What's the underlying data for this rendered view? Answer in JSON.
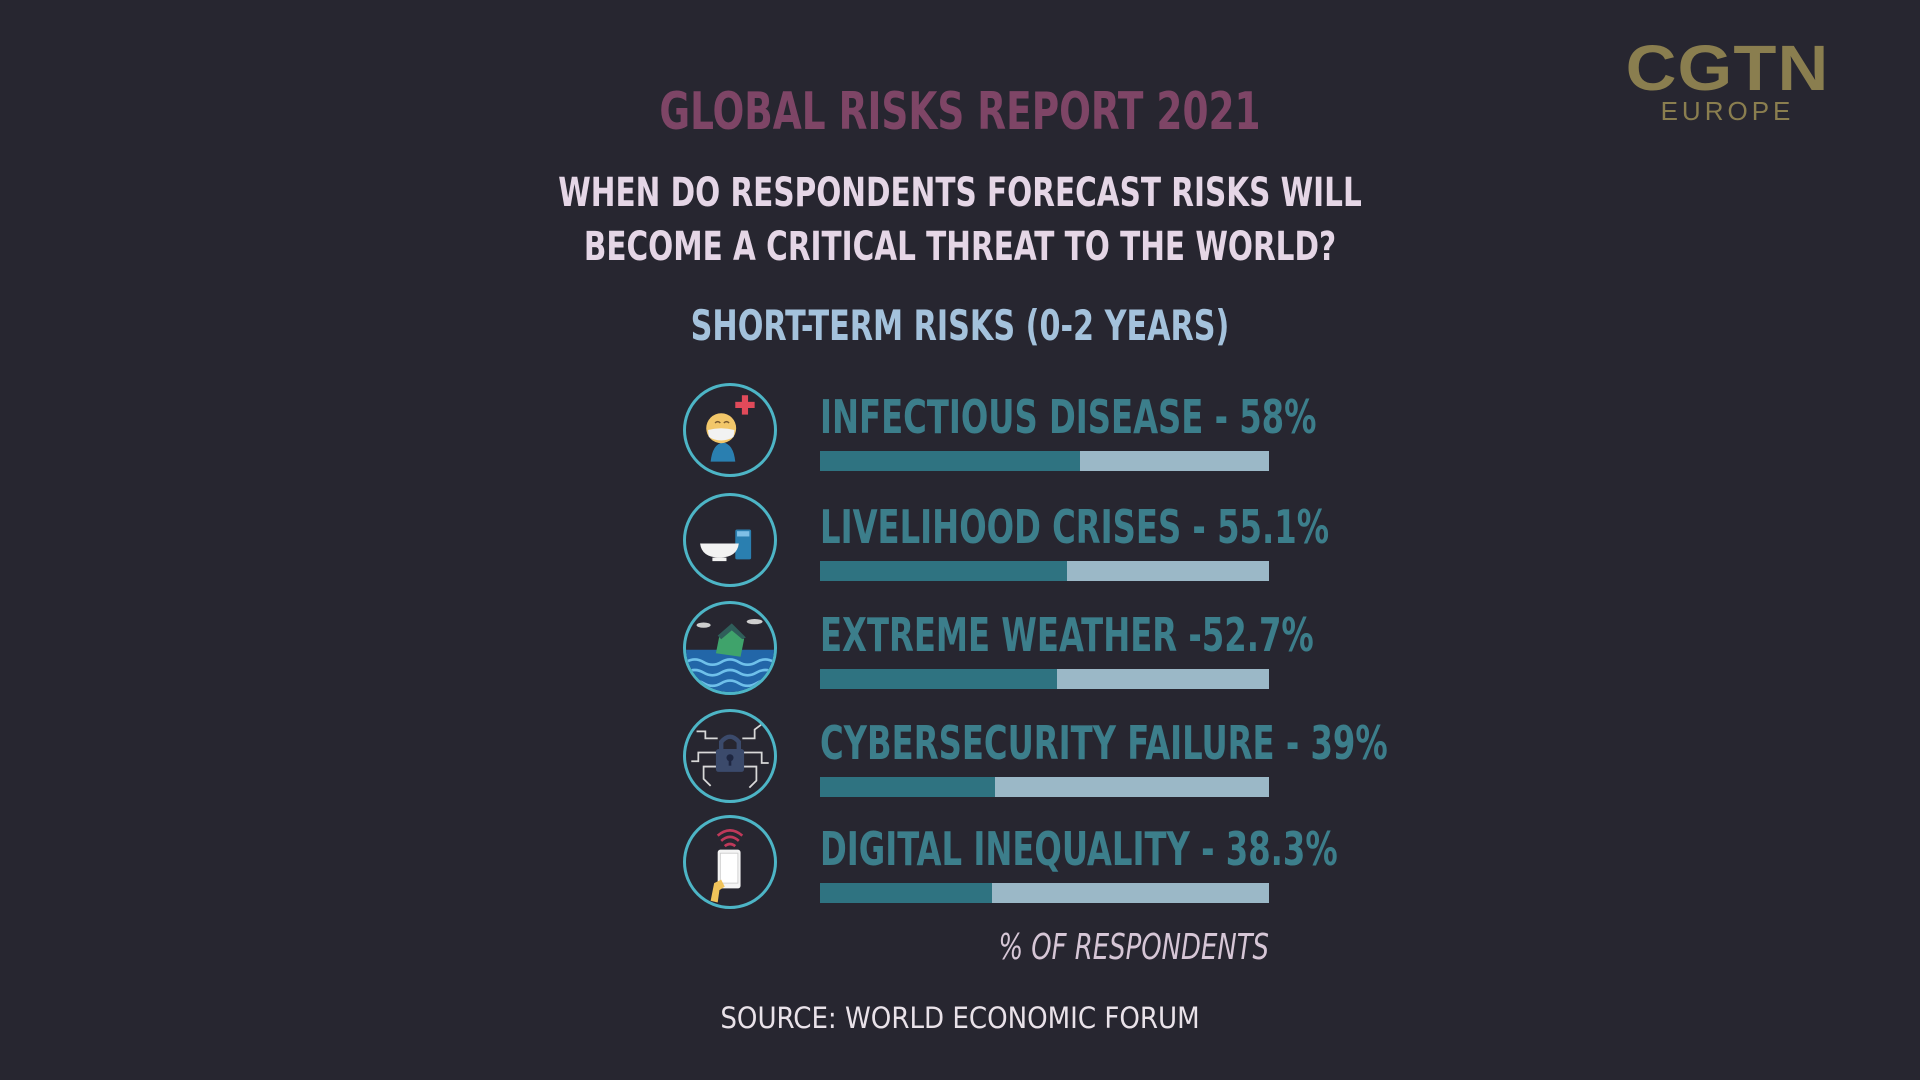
{
  "brand": {
    "main": "CGTN",
    "sub": "EUROPE"
  },
  "chart_data": {
    "type": "bar",
    "title": "GLOBAL RISKS REPORT 2021",
    "subtitle": [
      "WHEN DO RESPONDENTS FORECAST RISKS WILL",
      "BECOME A CRITICAL THREAT TO THE WORLD?"
    ],
    "section_title": "SHORT-TERM RISKS (0-2 YEARS)",
    "unit_label": "% OF RESPONDENTS",
    "source": "SOURCE: WORLD ECONOMIC FORUM",
    "xlim": [
      0,
      100
    ],
    "colors": {
      "fill": "#2f7381",
      "track": "#9bb8c7",
      "label": "#3c7e8b",
      "icon_ring": "#4db5c6"
    },
    "series": [
      {
        "values": [
          58,
          55.1,
          52.7,
          39,
          38.3
        ]
      }
    ],
    "categories": [
      "INFECTIOUS DISEASE",
      "LIVELIHOOD CRISES",
      "EXTREME WEATHER",
      "CYBERSECURITY FAILURE",
      "DIGITAL INEQUALITY"
    ],
    "bars": [
      {
        "label": "INFECTIOUS DISEASE - 58%",
        "value": 58,
        "icon": "masked-person-medical-cross-icon"
      },
      {
        "label": "LIVELIHOOD CRISES - 55.1%",
        "value": 55.1,
        "icon": "empty-bowl-and-cup-icon"
      },
      {
        "label": "EXTREME WEATHER -52.7%",
        "value": 52.7,
        "icon": "flooded-house-icon"
      },
      {
        "label": "CYBERSECURITY FAILURE - 39%",
        "value": 39,
        "icon": "circuit-padlock-icon"
      },
      {
        "label": "DIGITAL INEQUALITY - 38.3%",
        "value": 38.3,
        "icon": "phone-wifi-signal-icon"
      }
    ]
  }
}
